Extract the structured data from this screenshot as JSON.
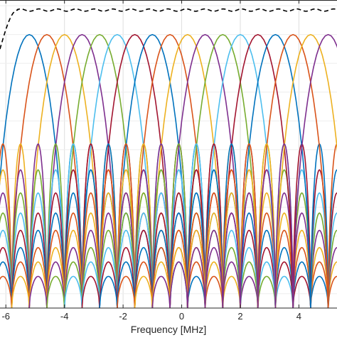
{
  "chart_data": {
    "type": "line",
    "title": "",
    "xlabel": "Frequency [MHz]",
    "ylabel": "",
    "xlim": [
      -6.2,
      5.3
    ],
    "ylim": [
      -0.95,
      0.12
    ],
    "x_ticks": [
      -6,
      -4,
      -2,
      0,
      2,
      4
    ],
    "x_tick_labels": [
      "-6",
      "-4",
      "-2",
      "0",
      "2",
      "4"
    ],
    "grid": true,
    "legend": "none",
    "subcarrier_centers_mhz": [
      -5.2,
      -4.6,
      -4.0,
      -3.4,
      -2.8,
      -2.2,
      -1.6,
      -1.0,
      -0.4,
      0.2,
      0.8,
      1.4,
      2.0,
      2.6,
      3.2,
      3.8,
      4.4,
      5.0
    ],
    "main_lobe_peak": 0,
    "main_lobe_half_width_mhz": 1.2,
    "sidelobe_width_mhz": 0.6,
    "sidelobe_peaks": [
      -0.38,
      -0.47,
      -0.55,
      -0.62,
      -0.68,
      -0.74,
      -0.79,
      -0.84
    ],
    "envelope": {
      "style": "dashed",
      "color": "#000000",
      "flat_level": 0.085,
      "x_range": [
        -6.2,
        5.3
      ]
    },
    "colors": [
      "#0072BD",
      "#D95319",
      "#EDB120",
      "#7E2F8E",
      "#77AC30",
      "#4DBEEE",
      "#A2142F"
    ]
  }
}
